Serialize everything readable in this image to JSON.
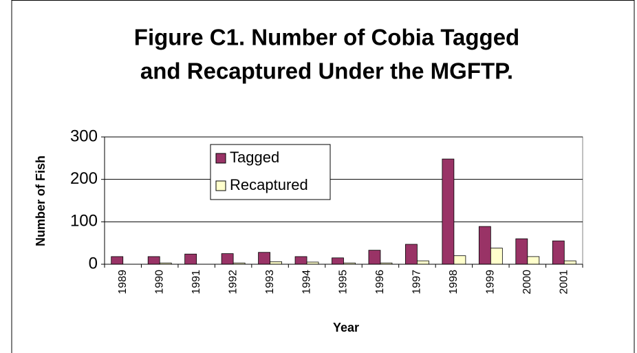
{
  "chart_data": {
    "type": "bar",
    "title": "Figure C1.  Number of Cobia Tagged and Recaptured Under the MGFTP.",
    "title_lines": [
      "Figure C1.  Number of Cobia Tagged",
      "and Recaptured Under the MGFTP."
    ],
    "x_label": "Year",
    "y_label": "Number of Fish",
    "categories": [
      "1989",
      "1990",
      "1991",
      "1992",
      "1993",
      "1994",
      "1995",
      "1996",
      "1997",
      "1998",
      "1999",
      "2000",
      "2001"
    ],
    "series": [
      {
        "name": "Tagged",
        "color": "#993366",
        "values": [
          18,
          18,
          24,
          25,
          28,
          18,
          15,
          33,
          47,
          248,
          89,
          60,
          55
        ]
      },
      {
        "name": "Recaptured",
        "color": "#ffffcc",
        "values": [
          0,
          3,
          0,
          3,
          6,
          5,
          3,
          3,
          8,
          20,
          38,
          18,
          8
        ]
      }
    ],
    "ylim": [
      0,
      300
    ],
    "yticks": [
      0,
      100,
      200,
      300
    ],
    "grid": true
  }
}
